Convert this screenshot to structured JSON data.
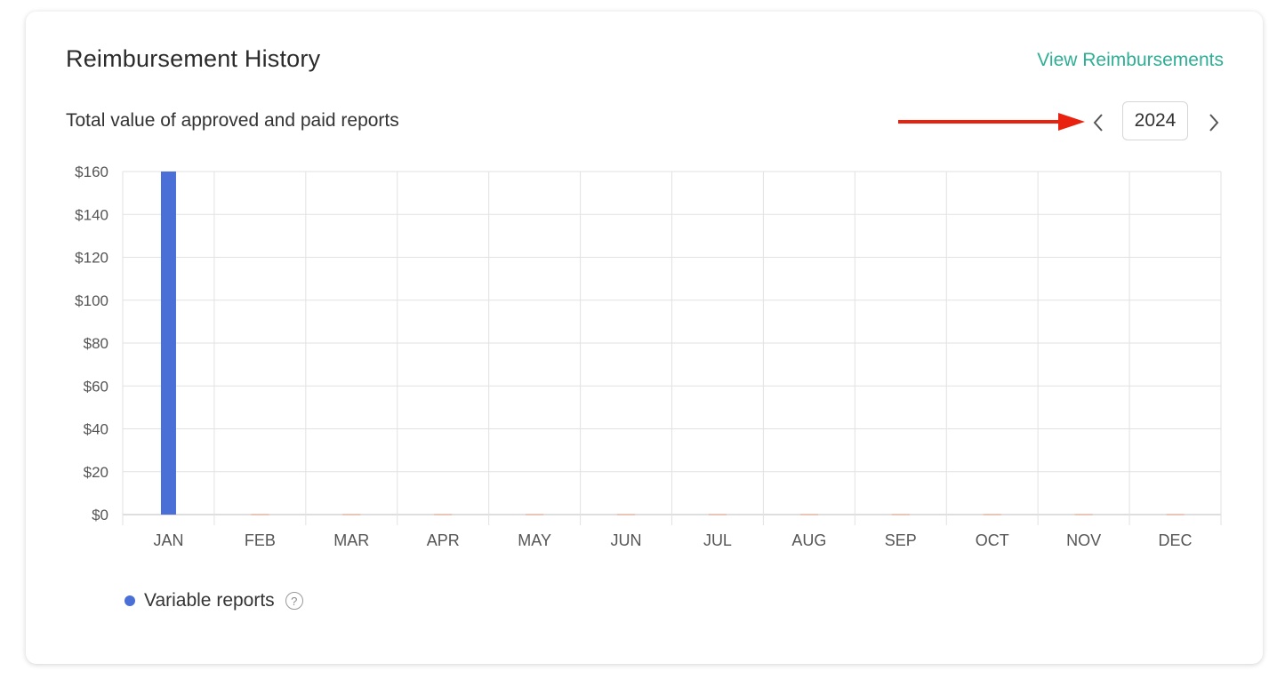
{
  "header": {
    "title": "Reimbursement History",
    "view_link": "View Reimbursements"
  },
  "subtitle": "Total value of approved and paid reports",
  "year_nav": {
    "year": "2024",
    "prev_icon": "chevron-left-icon",
    "next_icon": "chevron-right-icon"
  },
  "annotation": {
    "arrow_color": "#e8220f"
  },
  "legend": {
    "label": "Variable reports",
    "help": "?",
    "color": "#4a6fd6"
  },
  "chart_data": {
    "type": "bar",
    "categories": [
      "JAN",
      "FEB",
      "MAR",
      "APR",
      "MAY",
      "JUN",
      "JUL",
      "AUG",
      "SEP",
      "OCT",
      "NOV",
      "DEC"
    ],
    "series": [
      {
        "name": "Variable reports",
        "values": [
          160,
          0,
          0,
          0,
          0,
          0,
          0,
          0,
          0,
          0,
          0,
          0
        ],
        "color": "#4a6fd6"
      }
    ],
    "yticks": [
      "$0",
      "$20",
      "$40",
      "$60",
      "$80",
      "$100",
      "$120",
      "$140",
      "$160"
    ],
    "ylim": [
      0,
      160
    ],
    "grid": true
  }
}
